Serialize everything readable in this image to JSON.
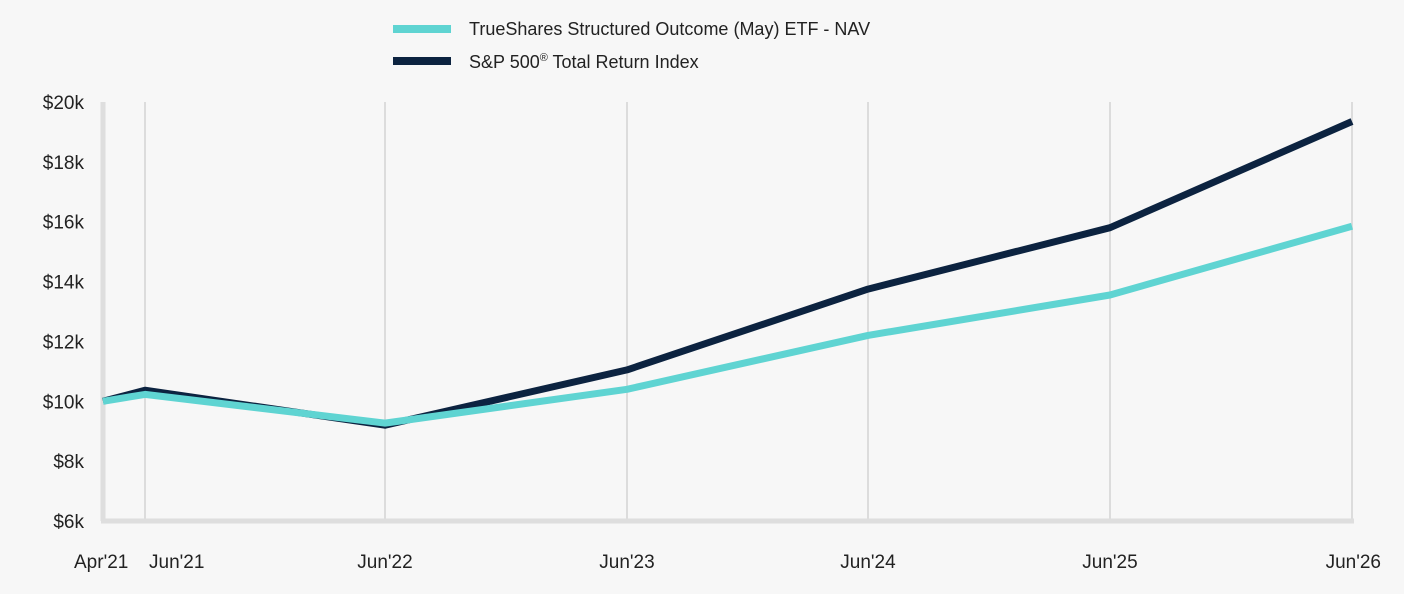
{
  "chart_data": {
    "type": "line",
    "x": [
      "Apr'21",
      "Jun'21",
      "Jun'22",
      "Jun'23",
      "Jun'24",
      "Jun'25",
      "Jun'26"
    ],
    "series": [
      {
        "name": "TrueShares Structured Outcome (May) ETF - NAV",
        "color": "#5fd4d2",
        "values": [
          10000,
          10230,
          9270,
          10400,
          12200,
          13550,
          15850
        ]
      },
      {
        "name": "S&P 500",
        "name_suffix": "®",
        "name_tail": " Total Return Index",
        "color": "#0c2340",
        "values": [
          10000,
          10370,
          9200,
          11050,
          13750,
          15800,
          19350
        ]
      }
    ],
    "yticks": [
      "$6k",
      "$8k",
      "$10k",
      "$12k",
      "$14k",
      "$16k",
      "$18k",
      "$20k"
    ],
    "ylim": [
      6000,
      20000
    ],
    "grid": "vertical",
    "legend_position": "top"
  }
}
